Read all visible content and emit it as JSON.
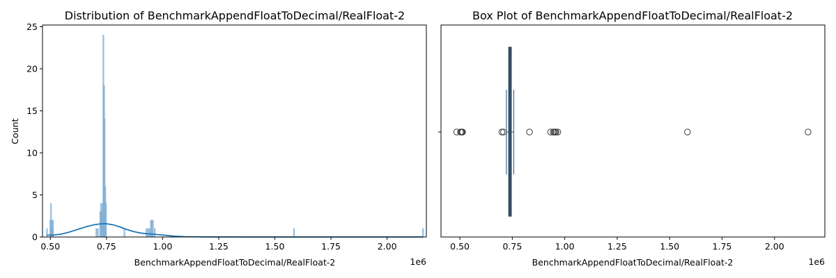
{
  "chart_data": [
    {
      "type": "bar",
      "title": "Distribution of BenchmarkAppendFloatToDecimal/RealFloat-2",
      "xlabel": "BenchmarkAppendFloatToDecimal/RealFloat-2",
      "ylabel": "Count",
      "x_offset_label": "1e6",
      "xlim": [
        0.465,
        2.175
      ],
      "ylim": [
        0,
        25.2
      ],
      "x_ticks": [
        0.5,
        0.75,
        1.0,
        1.25,
        1.5,
        1.75,
        2.0
      ],
      "x_tick_labels": [
        "0.50",
        "0.75",
        "1.00",
        "1.25",
        "1.50",
        "1.75",
        "2.00"
      ],
      "y_ticks": [
        0,
        5,
        10,
        15,
        20,
        25
      ],
      "y_tick_labels": [
        "0",
        "5",
        "10",
        "15",
        "20",
        "25"
      ],
      "bar_color": "#1f77b4",
      "bar_fill": "#a6c4e0",
      "kde_color": "#1f77b4",
      "bins": [
        {
          "x": 0.485,
          "count": 1
        },
        {
          "x": 0.5,
          "count": 2
        },
        {
          "x": 0.503,
          "count": 4
        },
        {
          "x": 0.507,
          "count": 2
        },
        {
          "x": 0.51,
          "count": 1
        },
        {
          "x": 0.512,
          "count": 2
        },
        {
          "x": 0.705,
          "count": 1
        },
        {
          "x": 0.712,
          "count": 1
        },
        {
          "x": 0.722,
          "count": 3
        },
        {
          "x": 0.726,
          "count": 4
        },
        {
          "x": 0.73,
          "count": 3
        },
        {
          "x": 0.733,
          "count": 4
        },
        {
          "x": 0.736,
          "count": 24
        },
        {
          "x": 0.74,
          "count": 18
        },
        {
          "x": 0.742,
          "count": 14
        },
        {
          "x": 0.745,
          "count": 6
        },
        {
          "x": 0.748,
          "count": 4
        },
        {
          "x": 0.83,
          "count": 1
        },
        {
          "x": 0.928,
          "count": 1
        },
        {
          "x": 0.935,
          "count": 1
        },
        {
          "x": 0.942,
          "count": 1
        },
        {
          "x": 0.948,
          "count": 2
        },
        {
          "x": 0.952,
          "count": 2
        },
        {
          "x": 0.957,
          "count": 2
        },
        {
          "x": 0.965,
          "count": 1
        },
        {
          "x": 1.585,
          "count": 1
        },
        {
          "x": 2.16,
          "count": 1
        }
      ],
      "kde": [
        [
          0.485,
          0.22
        ],
        [
          0.52,
          0.25
        ],
        [
          0.55,
          0.35
        ],
        [
          0.58,
          0.55
        ],
        [
          0.61,
          0.8
        ],
        [
          0.64,
          1.05
        ],
        [
          0.67,
          1.3
        ],
        [
          0.7,
          1.48
        ],
        [
          0.73,
          1.58
        ],
        [
          0.75,
          1.57
        ],
        [
          0.78,
          1.45
        ],
        [
          0.81,
          1.2
        ],
        [
          0.84,
          0.9
        ],
        [
          0.87,
          0.65
        ],
        [
          0.9,
          0.48
        ],
        [
          0.93,
          0.38
        ],
        [
          0.96,
          0.33
        ],
        [
          0.99,
          0.26
        ],
        [
          1.02,
          0.18
        ],
        [
          1.05,
          0.1
        ],
        [
          1.1,
          0.04
        ],
        [
          1.2,
          0.01
        ],
        [
          1.4,
          0.0
        ],
        [
          1.6,
          0.0
        ],
        [
          1.8,
          0.0
        ],
        [
          2.0,
          0.0
        ],
        [
          2.16,
          0.0
        ]
      ]
    },
    {
      "type": "box",
      "title": "Box Plot of BenchmarkAppendFloatToDecimal/RealFloat-2",
      "xlabel": "BenchmarkAppendFloatToDecimal/RealFloat-2",
      "x_offset_label": "1e6",
      "xlim": [
        0.41,
        2.24
      ],
      "x_ticks": [
        0.5,
        0.75,
        1.0,
        1.25,
        1.5,
        1.75,
        2.0
      ],
      "x_tick_labels": [
        "0.50",
        "0.75",
        "1.00",
        "1.25",
        "1.50",
        "1.75",
        "2.00"
      ],
      "box_color": "#3a6f9f",
      "q1": 0.733,
      "median": 0.739,
      "q3": 0.745,
      "whisker_low": 0.722,
      "whisker_high": 0.757,
      "outliers": [
        0.485,
        0.503,
        0.507,
        0.51,
        0.513,
        0.7,
        0.708,
        0.832,
        0.933,
        0.945,
        0.95,
        0.955,
        0.958,
        0.967,
        1.585,
        2.16
      ]
    }
  ]
}
